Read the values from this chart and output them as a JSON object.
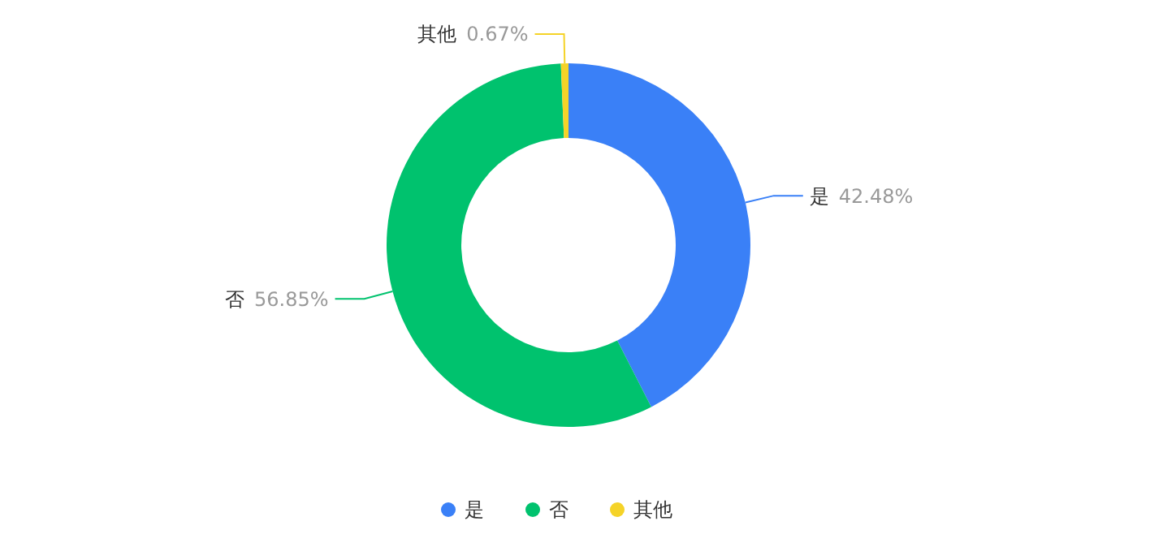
{
  "chart_data": {
    "type": "donut",
    "categories": [
      "是",
      "否",
      "其他"
    ],
    "values": [
      42.48,
      56.85,
      0.67
    ],
    "colors": [
      "#3a80f7",
      "#00c26e",
      "#f5d328"
    ],
    "value_labels": [
      "42.48%",
      "56.85%",
      "0.67%"
    ],
    "legend": "bottom"
  }
}
